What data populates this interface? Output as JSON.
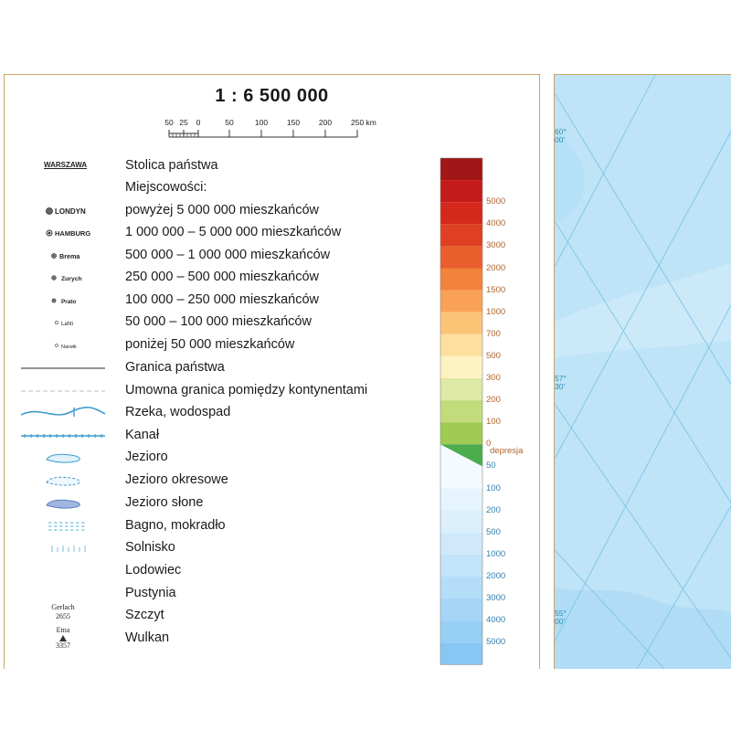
{
  "legend": {
    "scale_title": "1 : 6 500 000",
    "scale_ticks": [
      "50",
      "25",
      "0",
      "50",
      "100",
      "150",
      "200",
      "250 km"
    ],
    "items": [
      {
        "name": "capital",
        "symbol_text": "WARSZAWA",
        "label": "Stolica państwa"
      },
      {
        "name": "settlements-header",
        "label": "Miejscowości:"
      },
      {
        "name": "city-over-5m",
        "symbol_text": "LONDYN",
        "label": "powyżej 5 000 000 mieszkańców"
      },
      {
        "name": "city-1m-5m",
        "symbol_text": "HAMBURG",
        "label": "1 000 000 – 5 000 000 mieszkańców"
      },
      {
        "name": "city-500k-1m",
        "symbol_text": "Brema",
        "label": "500 000 – 1 000 000 mieszkańców"
      },
      {
        "name": "city-250k-500k",
        "symbol_text": "Zurych",
        "label": "250 000 – 500 000 mieszkańców"
      },
      {
        "name": "city-100k-250k",
        "symbol_text": "Prato",
        "label": "100 000 – 250 000 mieszkańców"
      },
      {
        "name": "city-50k-100k",
        "symbol_text": "Lahti",
        "label": "50 000 – 100 000 mieszkańców"
      },
      {
        "name": "city-under-50k",
        "symbol_text": "Narwik",
        "label": "poniżej 50 000 mieszkańców"
      },
      {
        "name": "state-border",
        "label": "Granica państwa"
      },
      {
        "name": "continent-border",
        "label": "Umowna granica pomiędzy kontynentami"
      },
      {
        "name": "river",
        "label": "Rzeka, wodospad"
      },
      {
        "name": "canal",
        "label": "Kanał"
      },
      {
        "name": "lake",
        "label": "Jezioro"
      },
      {
        "name": "seasonal-lake",
        "label": "Jezioro okresowe"
      },
      {
        "name": "salt-lake",
        "label": "Jezioro słone"
      },
      {
        "name": "swamp",
        "label": "Bagno, mokradło"
      },
      {
        "name": "salt-flat",
        "label": "Solnisko"
      },
      {
        "name": "glacier",
        "label": "Lodowiec"
      },
      {
        "name": "desert",
        "label": "Pustynia"
      },
      {
        "name": "peak",
        "symbol_name": "Gerlach",
        "symbol_value": "2655",
        "label": "Szczyt"
      },
      {
        "name": "volcano",
        "symbol_name": "Etna",
        "symbol_value": "3357",
        "label": "Wulkan"
      }
    ]
  },
  "elevation_ramp": {
    "land": [
      {
        "label": "5000",
        "color": "#c51a1a"
      },
      {
        "label": "4000",
        "color": "#d4281c"
      },
      {
        "label": "3000",
        "color": "#df3f22"
      },
      {
        "label": "2000",
        "color": "#ea5e2d"
      },
      {
        "label": "1500",
        "color": "#f3823b"
      },
      {
        "label": "1000",
        "color": "#f9a257"
      },
      {
        "label": "700",
        "color": "#fcc477"
      },
      {
        "label": "500",
        "color": "#fde09d"
      },
      {
        "label": "300",
        "color": "#fdf3c2"
      },
      {
        "label": "200",
        "color": "#dde9a4"
      },
      {
        "label": "100",
        "color": "#c2dc7c"
      },
      {
        "label": "0",
        "color": "#9fcb52"
      }
    ],
    "top_color": "#a11616",
    "depression": {
      "label": "depresja",
      "color": "#4cad4e"
    },
    "sea": [
      {
        "label": "50",
        "color": "#f4fafe"
      },
      {
        "label": "100",
        "color": "#e6f4fd"
      },
      {
        "label": "200",
        "color": "#dbeffc"
      },
      {
        "label": "500",
        "color": "#cfe9fb"
      },
      {
        "label": "1000",
        "color": "#c2e3fa"
      },
      {
        "label": "2000",
        "color": "#b4ddf8"
      },
      {
        "label": "3000",
        "color": "#a6d6f7"
      },
      {
        "label": "4000",
        "color": "#97cff5"
      },
      {
        "label": "5000",
        "color": "#86c7f3"
      }
    ],
    "land_label_color": "#b0622a",
    "sea_label_color": "#2f7fb0"
  },
  "map": {
    "latitudes": [
      {
        "deg": "60°",
        "min": "00'"
      },
      {
        "deg": "57°",
        "min": "30'"
      },
      {
        "deg": "55°",
        "min": "00'"
      }
    ],
    "water_color": "#bfe3f7",
    "shallow_color": "#d6eefb",
    "graticule_color": "#74c4e6"
  }
}
